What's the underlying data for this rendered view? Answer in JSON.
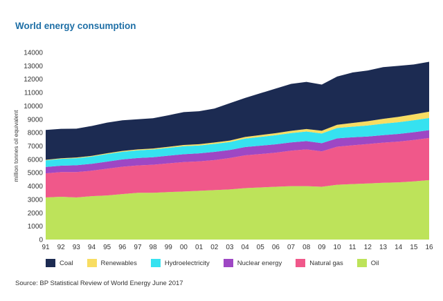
{
  "title": "World energy consumption",
  "source": "Source: BP Statistical Review of World Energy June 2017",
  "chart_data": {
    "type": "area",
    "stacked": true,
    "title": "World energy consumption",
    "xlabel": "",
    "ylabel": "million tonnes oil equivalent",
    "ylim": [
      0,
      14000
    ],
    "yticks": [
      0,
      1000,
      2000,
      3000,
      4000,
      5000,
      6000,
      7000,
      8000,
      9000,
      10000,
      11000,
      12000,
      13000,
      14000
    ],
    "categories": [
      "91",
      "92",
      "93",
      "94",
      "95",
      "96",
      "97",
      "98",
      "99",
      "00",
      "01",
      "02",
      "03",
      "04",
      "05",
      "06",
      "07",
      "08",
      "09",
      "10",
      "11",
      "12",
      "13",
      "14",
      "15",
      "16"
    ],
    "grid": false,
    "legend_position": "bottom",
    "series": [
      {
        "name": "Oil",
        "color": "#bde35a",
        "values": [
          3150,
          3200,
          3150,
          3250,
          3300,
          3400,
          3500,
          3500,
          3550,
          3600,
          3650,
          3700,
          3750,
          3850,
          3900,
          3950,
          4000,
          4000,
          3950,
          4100,
          4150,
          4200,
          4250,
          4280,
          4350,
          4450
        ]
      },
      {
        "name": "Natural gas",
        "color": "#f0588a",
        "values": [
          1800,
          1850,
          1900,
          1900,
          2000,
          2050,
          2050,
          2100,
          2150,
          2200,
          2200,
          2250,
          2350,
          2450,
          2500,
          2550,
          2650,
          2750,
          2650,
          2850,
          2900,
          2950,
          3000,
          3050,
          3100,
          3150
        ]
      },
      {
        "name": "Nuclear energy",
        "color": "#9e47c4",
        "values": [
          480,
          480,
          510,
          520,
          530,
          550,
          555,
          560,
          575,
          585,
          600,
          610,
          600,
          625,
          625,
          630,
          620,
          615,
          610,
          625,
          600,
          560,
          565,
          575,
          585,
          590
        ]
      },
      {
        "name": "Hydroelectricity",
        "color": "#36e2f0",
        "values": [
          500,
          510,
          530,
          540,
          570,
          570,
          575,
          580,
          590,
          600,
          590,
          600,
          600,
          630,
          660,
          685,
          700,
          720,
          725,
          775,
          795,
          830,
          860,
          880,
          895,
          910
        ]
      },
      {
        "name": "Renewables",
        "color": "#f8dd62",
        "values": [
          40,
          45,
          50,
          55,
          60,
          65,
          70,
          75,
          80,
          90,
          95,
          105,
          110,
          125,
          135,
          150,
          165,
          185,
          210,
          240,
          280,
          320,
          360,
          395,
          440,
          470
        ]
      },
      {
        "name": "Coal",
        "color": "#1c2b52",
        "values": [
          2230,
          2200,
          2160,
          2235,
          2290,
          2290,
          2250,
          2265,
          2355,
          2465,
          2465,
          2535,
          2790,
          2920,
          3130,
          3335,
          3515,
          3530,
          3455,
          3610,
          3775,
          3790,
          3865,
          3820,
          3730,
          3730
        ]
      }
    ]
  },
  "legend": [
    {
      "label": "Coal",
      "color": "#1c2b52"
    },
    {
      "label": "Renewables",
      "color": "#f8dd62"
    },
    {
      "label": "Hydroelectricity",
      "color": "#36e2f0"
    },
    {
      "label": "Nuclear energy",
      "color": "#9e47c4"
    },
    {
      "label": "Natural gas",
      "color": "#f0588a"
    },
    {
      "label": "Oil",
      "color": "#bde35a"
    }
  ]
}
